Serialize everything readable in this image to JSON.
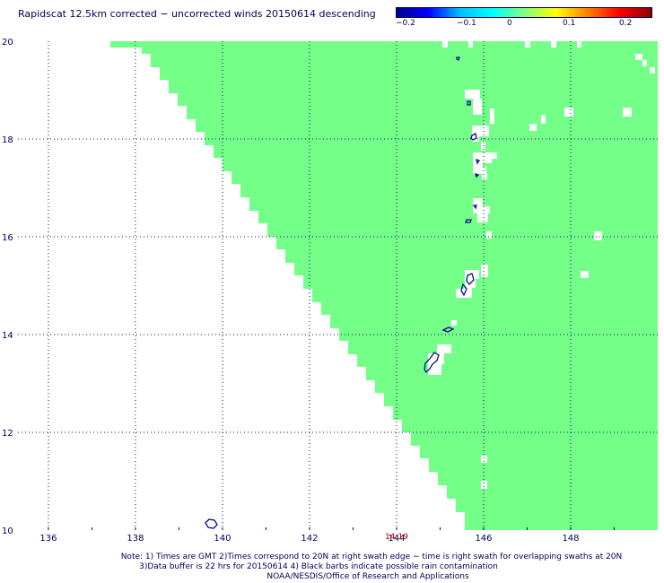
{
  "title": "Rapidscat 12.5km corrected − uncorrected winds 20150614 descending",
  "colorbar": {
    "labels": [
      "−0.2",
      "−0.1",
      "0",
      "0.1",
      "0.2"
    ],
    "colors": [
      "#00008b",
      "#0000ff",
      "#00bfff",
      "#00ffff",
      "#7fff7f",
      "#ffff00",
      "#ff7f00",
      "#ff0000",
      "#8b0000"
    ]
  },
  "map": {
    "lon_range": [
      135.3,
      150.0
    ],
    "lat_range": [
      10,
      20
    ],
    "x_tick_labels": [
      "136",
      "138",
      "140",
      "142",
      "144",
      "146",
      "148"
    ],
    "y_tick_labels": [
      "20",
      "18",
      "16",
      "14",
      "12",
      "10"
    ],
    "swath_time": "14:19",
    "swath_color": "#73ff88",
    "coastline_color": "#0b0b8a",
    "grid": "dotted"
  },
  "notes": {
    "line1": "Note: 1) Times are GMT 2)Times correspond to 20N at right swath edge − time is right swath for overlapping swaths at 20N",
    "line2": "3)Data buffer is 22 hrs for 20150614 4) Black barbs indicate possible rain contamination",
    "line3": "NOAA/NESDIS/Office of Research and Applications"
  }
}
